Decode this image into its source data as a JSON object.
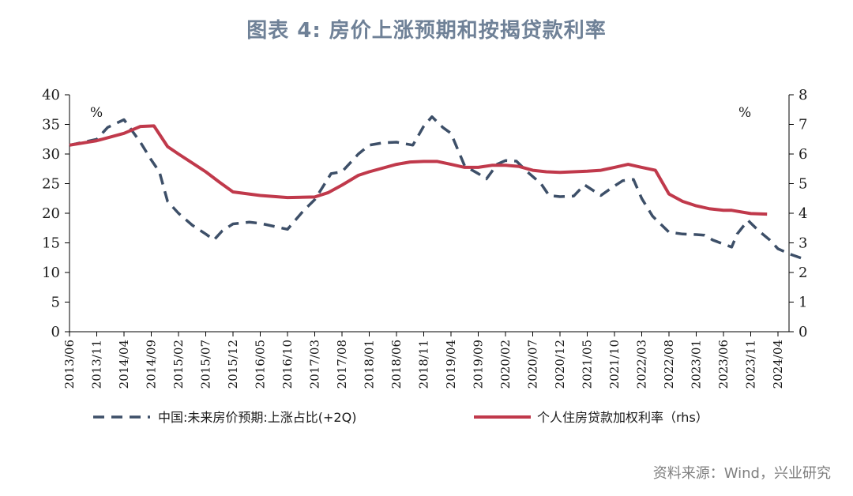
{
  "title": "图表 4:  房价上涨预期和按揭贷款利率",
  "source": "资料来源：Wind，兴业研究",
  "chart_data": {
    "type": "line",
    "x": [
      "2013/06",
      "2013/11",
      "2014/04",
      "2014/09",
      "2015/02",
      "2015/07",
      "2015/12",
      "2016/05",
      "2016/10",
      "2017/03",
      "2017/08",
      "2018/01",
      "2018/06",
      "2018/11",
      "2019/04",
      "2019/09",
      "2020/02",
      "2020/07",
      "2020/12",
      "2021/05",
      "2021/10",
      "2022/03",
      "2022/08",
      "2023/01",
      "2023/06",
      "2023/11",
      "2024/04"
    ],
    "left_axis": {
      "ylim": [
        0,
        40
      ],
      "ticks": [
        "0",
        "5",
        "10",
        "15",
        "20",
        "25",
        "30",
        "35",
        "40"
      ],
      "unit": "%"
    },
    "right_axis": {
      "ylim": [
        0,
        8
      ],
      "ticks": [
        "0",
        "1",
        "2",
        "3",
        "4",
        "5",
        "6",
        "7",
        "8"
      ],
      "unit": "%"
    },
    "series": [
      {
        "name": "中国:未来房价预期:上涨占比(+2Q)",
        "axis": "left",
        "style": "dashed",
        "color": "#3d4f68",
        "points": [
          [
            0,
            31.5
          ],
          [
            1,
            32.5
          ],
          [
            1.4,
            34.5
          ],
          [
            2,
            35.8
          ],
          [
            2.6,
            32
          ],
          [
            3,
            29
          ],
          [
            3.3,
            27
          ],
          [
            3.6,
            22
          ],
          [
            4,
            20
          ],
          [
            4.5,
            18
          ],
          [
            5,
            16.5
          ],
          [
            5.3,
            15.5
          ],
          [
            5.6,
            17
          ],
          [
            6,
            18.2
          ],
          [
            6.6,
            18.5
          ],
          [
            7,
            18.3
          ],
          [
            7.6,
            17.7
          ],
          [
            8,
            17.3
          ],
          [
            8.6,
            20.5
          ],
          [
            9,
            22.3
          ],
          [
            9.6,
            26.7
          ],
          [
            10,
            27
          ],
          [
            10.6,
            30
          ],
          [
            11,
            31.5
          ],
          [
            11.5,
            31.9
          ],
          [
            12,
            32
          ],
          [
            12.6,
            31.5
          ],
          [
            13,
            34.7
          ],
          [
            13.3,
            36.3
          ],
          [
            13.7,
            34.5
          ],
          [
            14,
            33.5
          ],
          [
            14.5,
            28
          ],
          [
            15,
            26.7
          ],
          [
            15.3,
            25.8
          ],
          [
            15.7,
            28.3
          ],
          [
            16,
            28.9
          ],
          [
            16.4,
            28.8
          ],
          [
            16.8,
            27
          ],
          [
            17.3,
            25
          ],
          [
            17.6,
            23
          ],
          [
            18,
            22.8
          ],
          [
            18.5,
            22.9
          ],
          [
            18.9,
            24.8
          ],
          [
            19.5,
            23
          ],
          [
            19.9,
            24.3
          ],
          [
            20.3,
            25.5
          ],
          [
            20.7,
            25.7
          ],
          [
            21,
            22.5
          ],
          [
            21.4,
            19.5
          ],
          [
            22,
            16.8
          ],
          [
            22.5,
            16.5
          ],
          [
            23,
            16.4
          ],
          [
            23.3,
            16.3
          ],
          [
            23.6,
            15.5
          ],
          [
            24,
            14.8
          ],
          [
            24.3,
            14.3
          ],
          [
            24.5,
            16.5
          ],
          [
            24.9,
            18.8
          ],
          [
            25.3,
            17
          ],
          [
            25.7,
            15.5
          ],
          [
            26,
            14
          ],
          [
            26.5,
            13
          ],
          [
            27,
            12.2
          ]
        ]
      },
      {
        "name": "个人住房贷款加权利率（rhs）",
        "axis": "right",
        "style": "solid",
        "color": "#c0394b",
        "points": [
          [
            0,
            6.3
          ],
          [
            1,
            6.45
          ],
          [
            2,
            6.7
          ],
          [
            2.6,
            6.93
          ],
          [
            3.1,
            6.95
          ],
          [
            3.6,
            6.25
          ],
          [
            4,
            6.0
          ],
          [
            5,
            5.4
          ],
          [
            5.5,
            5.05
          ],
          [
            6,
            4.72
          ],
          [
            7,
            4.6
          ],
          [
            8,
            4.53
          ],
          [
            9,
            4.55
          ],
          [
            9.5,
            4.7
          ],
          [
            10,
            4.95
          ],
          [
            10.6,
            5.28
          ],
          [
            11,
            5.4
          ],
          [
            12,
            5.65
          ],
          [
            12.5,
            5.73
          ],
          [
            13,
            5.75
          ],
          [
            13.5,
            5.75
          ],
          [
            14,
            5.65
          ],
          [
            14.5,
            5.55
          ],
          [
            15,
            5.55
          ],
          [
            15.5,
            5.62
          ],
          [
            16,
            5.62
          ],
          [
            16.5,
            5.58
          ],
          [
            17,
            5.45
          ],
          [
            17.5,
            5.4
          ],
          [
            18,
            5.38
          ],
          [
            18.5,
            5.4
          ],
          [
            19,
            5.42
          ],
          [
            19.5,
            5.45
          ],
          [
            20,
            5.55
          ],
          [
            20.5,
            5.65
          ],
          [
            21,
            5.55
          ],
          [
            21.5,
            5.45
          ],
          [
            22,
            4.65
          ],
          [
            22.5,
            4.4
          ],
          [
            23,
            4.25
          ],
          [
            23.5,
            4.15
          ],
          [
            24,
            4.1
          ],
          [
            24.3,
            4.1
          ],
          [
            25,
            3.99
          ],
          [
            25.6,
            3.97
          ]
        ]
      }
    ]
  },
  "legend": {
    "series1": "中国:未来房价预期:上涨占比(+2Q)",
    "series2": "个人住房贷款加权利率（rhs）"
  },
  "colors": {
    "title": "#6f8197",
    "dashed": "#3d4f68",
    "solid": "#c0394b",
    "axis": "#000000"
  }
}
